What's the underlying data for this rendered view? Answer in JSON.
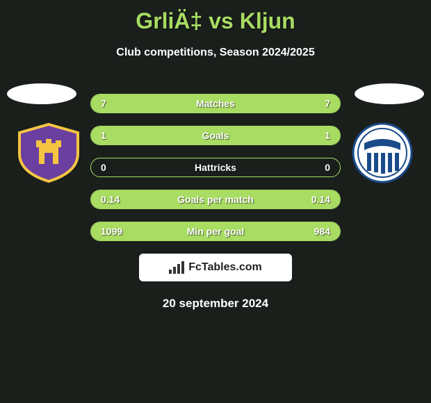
{
  "header": {
    "title": "GrliÄ‡ vs Kljun",
    "subtitle": "Club competitions, Season 2024/2025"
  },
  "clubs": {
    "left": {
      "name": "maribor",
      "badge": {
        "shield_fill": "#6b3fa0",
        "shield_stroke": "#f5c542",
        "castle_fill": "#f5c542"
      }
    },
    "right": {
      "name": "nafta",
      "badge": {
        "circle_fill": "#ffffff",
        "circle_stroke": "#1a4a8a",
        "inner_fill": "#1a4a8a",
        "stripes": "#ffffff"
      }
    }
  },
  "stats": {
    "type": "comparison-bars",
    "accent_color": "#a8dc62",
    "background_color": "#1a1f1c",
    "text_color": "#ffffff",
    "rows": [
      {
        "label": "Matches",
        "left": "7",
        "right": "7",
        "left_pct": 50,
        "right_pct": 50
      },
      {
        "label": "Goals",
        "left": "1",
        "right": "1",
        "left_pct": 50,
        "right_pct": 50
      },
      {
        "label": "Hattricks",
        "left": "0",
        "right": "0",
        "left_pct": 0,
        "right_pct": 0
      },
      {
        "label": "Goals per match",
        "left": "0.14",
        "right": "0.14",
        "left_pct": 50,
        "right_pct": 50
      },
      {
        "label": "Min per goal",
        "left": "1099",
        "right": "984",
        "left_pct": 53,
        "right_pct": 47
      }
    ]
  },
  "branding": {
    "label": "FcTables.com",
    "icon": "chart-icon"
  },
  "footer": {
    "date": "20 september 2024"
  }
}
